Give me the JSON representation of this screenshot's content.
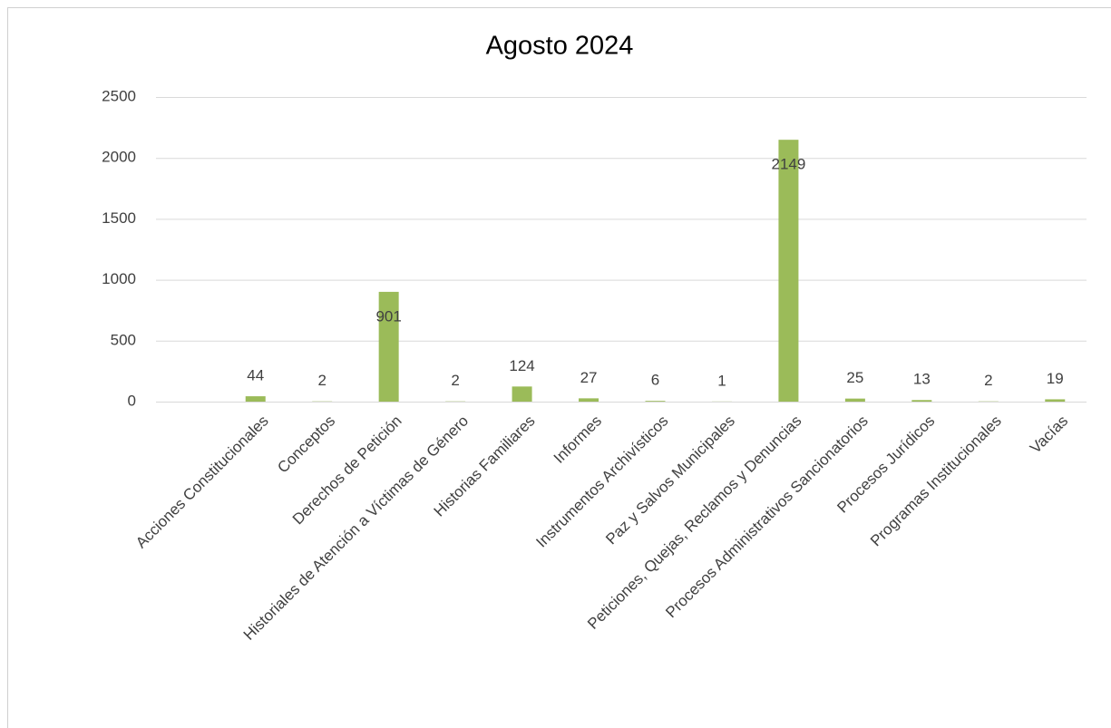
{
  "chart_data": {
    "type": "bar",
    "title": "Agosto 2024",
    "categories": [
      "Acciones Constitucionales",
      "Conceptos",
      "Derechos de Petición",
      "Historiales de Atención a Víctimas de Género",
      "Historias Familiares",
      "Informes",
      "Instrumentos Archivísticos",
      "Paz y Salvos Municipales",
      "Peticiones, Quejas, Reclamos y Denuncias",
      "Procesos Administrativos Sancionatorios",
      "Procesos Jurídicos",
      "Programas Institucionales",
      "Vacías"
    ],
    "values": [
      44,
      2,
      901,
      2,
      124,
      27,
      6,
      1,
      2149,
      25,
      13,
      2,
      19
    ],
    "color": "#9bbb59",
    "ylim": [
      0,
      2500
    ],
    "yticks": [
      0,
      500,
      1000,
      1500,
      2000,
      2500
    ],
    "grid": true
  }
}
